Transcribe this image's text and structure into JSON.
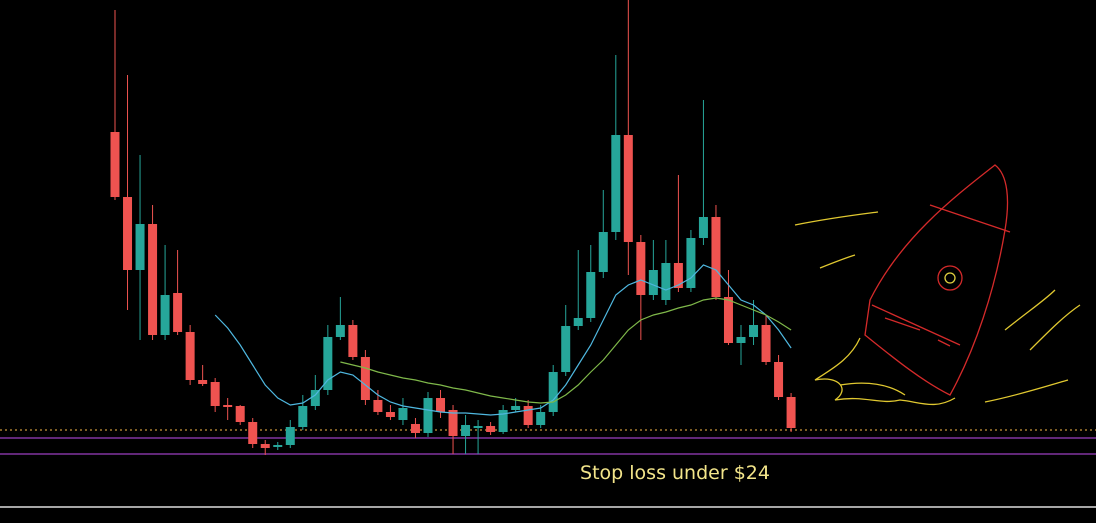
{
  "chart_data": {
    "type": "candlestick",
    "annotation": "Stop loss under $24",
    "ylim": [
      20.75,
      46
    ],
    "up_color": "#26a69a",
    "down_color": "#ef5350",
    "open": [
      39.4,
      36.15,
      32.5,
      34.8,
      29.25,
      31.35,
      29.4,
      27,
      26.9,
      25.75,
      25.7,
      24.9,
      23.8,
      23.65,
      23.75,
      24.65,
      25.7,
      26.5,
      29.15,
      29.75,
      28.15,
      26,
      25.4,
      25,
      24.8,
      24.35,
      26.1,
      25.5,
      24.2,
      24.6,
      24.7,
      24.4,
      25.5,
      25.7,
      24.75,
      25.4,
      27.4,
      29.7,
      30.1,
      32.4,
      34.4,
      39.25,
      33.9,
      31.25,
      31,
      32.85,
      31.6,
      34.1,
      35.15,
      31.15,
      28.85,
      29.15,
      29.75,
      27.9,
      26.15
    ],
    "high": [
      45.5,
      42.25,
      38.25,
      35.75,
      33.75,
      33.5,
      29.75,
      27.75,
      27.1,
      26.1,
      25.75,
      25.1,
      24,
      23.9,
      25,
      26.25,
      27.25,
      29.75,
      31.15,
      30,
      28.5,
      26.5,
      25.75,
      26.1,
      25.1,
      26.4,
      26.5,
      25.75,
      25.25,
      25,
      24.9,
      25.75,
      26.1,
      26,
      25.75,
      27.75,
      30.75,
      33.5,
      33.75,
      36.5,
      43.25,
      46,
      34.25,
      34,
      34,
      37.25,
      34.5,
      41,
      35.75,
      32.5,
      29.75,
      31,
      30.25,
      28.25,
      26.35
    ],
    "low": [
      36,
      30.5,
      29,
      29,
      29,
      29.25,
      26.75,
      26.7,
      25.4,
      25,
      24.75,
      23.6,
      23.25,
      23.5,
      23.6,
      24.5,
      25.5,
      26.25,
      29,
      28,
      25.75,
      25.25,
      25,
      24.75,
      24.1,
      24.15,
      25.1,
      23.3,
      23.3,
      23.3,
      24.25,
      24.3,
      25.4,
      24.6,
      24.6,
      25.2,
      27.2,
      29.5,
      29.9,
      32.1,
      34,
      32.25,
      29,
      31,
      30.75,
      31.4,
      31.4,
      33.75,
      31,
      28.75,
      27.75,
      28.75,
      27.75,
      26,
      24.4
    ],
    "close": [
      36.15,
      32.5,
      34.8,
      29.25,
      31.25,
      29.4,
      27,
      26.8,
      25.7,
      25.65,
      24.9,
      23.8,
      23.6,
      23.75,
      24.65,
      25.7,
      26.5,
      29.15,
      29.75,
      28.15,
      26,
      25.4,
      25.15,
      25.6,
      24.35,
      26.1,
      25.4,
      24.2,
      24.75,
      24.7,
      24.4,
      25.5,
      25.7,
      24.75,
      25.4,
      27.4,
      29.7,
      30.1,
      32.4,
      34.4,
      39.25,
      33.9,
      31.25,
      32.5,
      32.85,
      31.6,
      34.1,
      35.15,
      31.15,
      28.85,
      29.15,
      29.75,
      27.9,
      26.15,
      24.6
    ],
    "series": [
      {
        "color": "#4fb8e0",
        "values": [
          null,
          null,
          null,
          null,
          null,
          null,
          null,
          null,
          30.25,
          29.6,
          28.75,
          27.75,
          26.75,
          26.1,
          25.75,
          25.85,
          26.25,
          27,
          27.4,
          27.25,
          26.75,
          26.25,
          25.9,
          25.7,
          25.6,
          25.5,
          25.4,
          25.35,
          25.35,
          25.3,
          25.25,
          25.3,
          25.4,
          25.5,
          25.6,
          26,
          26.75,
          27.75,
          28.75,
          30,
          31.25,
          31.75,
          32,
          31.75,
          31.5,
          31.75,
          32.1,
          32.75,
          32.5,
          31.75,
          31,
          30.75,
          30.25,
          29.5,
          28.6
        ]
      },
      {
        "color": "#7fb84a",
        "values": [
          null,
          null,
          null,
          null,
          null,
          null,
          null,
          null,
          null,
          null,
          null,
          null,
          null,
          null,
          null,
          null,
          null,
          null,
          27.9,
          27.75,
          27.6,
          27.4,
          27.25,
          27.1,
          27,
          26.85,
          26.75,
          26.6,
          26.5,
          26.35,
          26.2,
          26.1,
          26,
          25.9,
          25.85,
          25.9,
          26.25,
          26.75,
          27.4,
          28,
          28.75,
          29.5,
          30,
          30.25,
          30.4,
          30.6,
          30.75,
          31,
          31.1,
          31,
          30.75,
          30.5,
          30.25,
          29.9,
          29.5
        ]
      }
    ],
    "hlines": [
      {
        "value": 24.5,
        "color": "#c9963a",
        "dash": true
      },
      {
        "value": 24.1,
        "color": "#9b3fc0",
        "dash": false
      },
      {
        "value": 23.3,
        "color": "#9b3fc0",
        "dash": false
      }
    ]
  }
}
